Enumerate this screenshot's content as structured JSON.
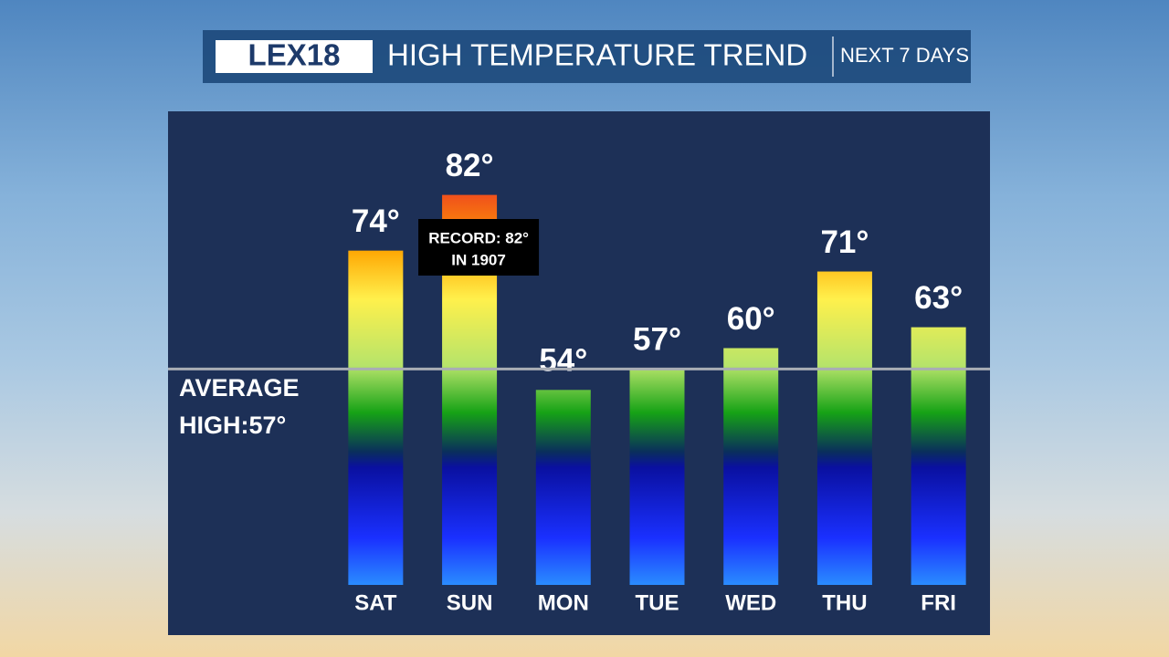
{
  "chart_data": {
    "type": "bar",
    "logo": "LEX18",
    "title": "HIGH TEMPERATURE TREND",
    "subtitle": "NEXT 7 DAYS",
    "categories": [
      "SAT",
      "SUN",
      "MON",
      "TUE",
      "WED",
      "THU",
      "FRI"
    ],
    "values": [
      74,
      82,
      54,
      57,
      60,
      71,
      63
    ],
    "value_labels": [
      "74°",
      "82°",
      "54°",
      "57°",
      "60°",
      "71°",
      "63°"
    ],
    "ylim": [
      26,
      94
    ],
    "average": {
      "value": 57,
      "label": "AVERAGE HIGH:57°"
    },
    "annotation": {
      "category": 1,
      "lines": [
        "RECORD: 82°",
        "IN 1907"
      ]
    }
  }
}
